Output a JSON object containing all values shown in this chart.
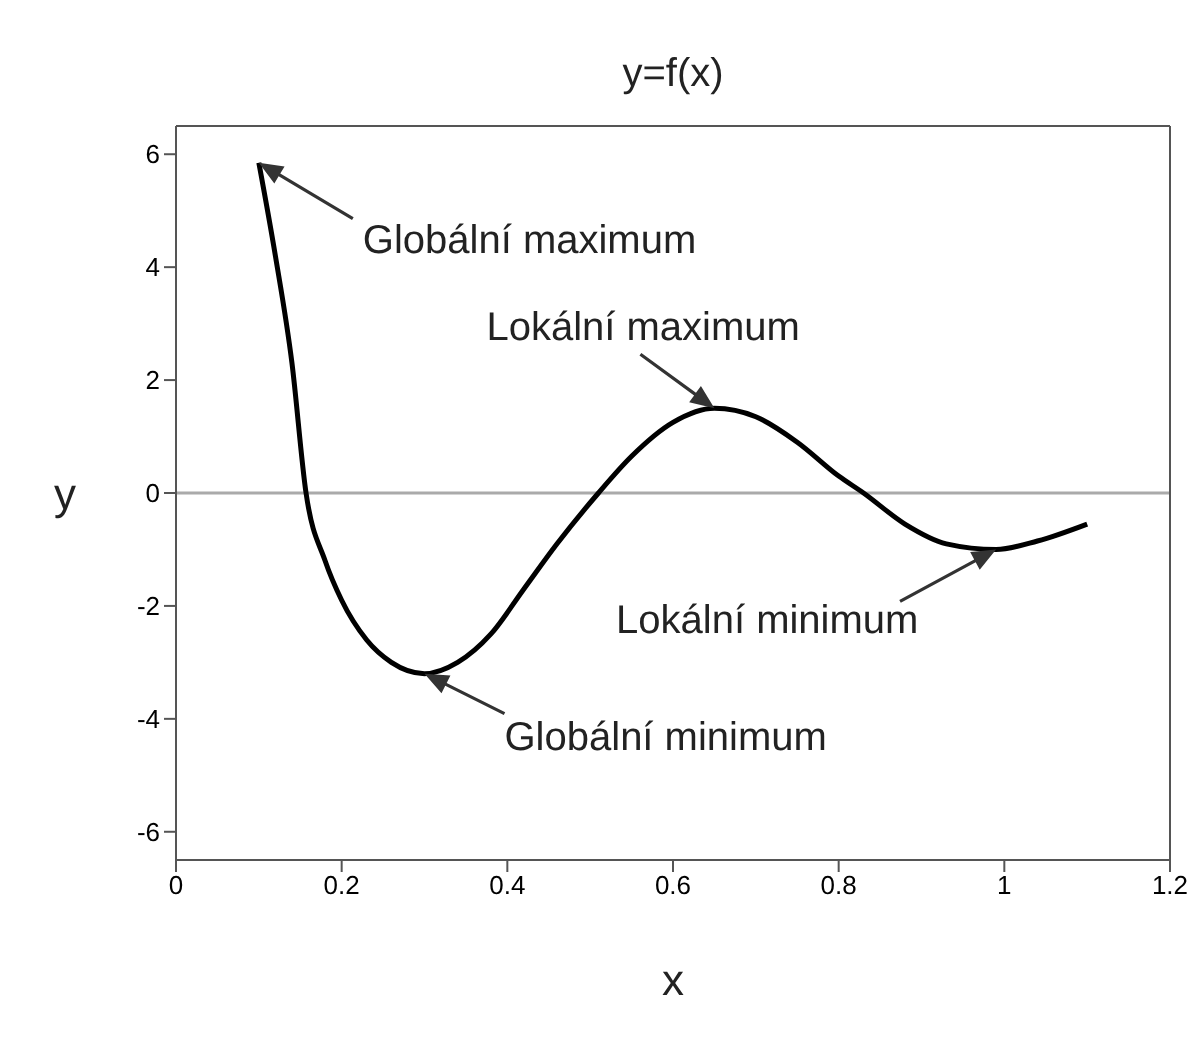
{
  "chart_data": {
    "type": "line",
    "title": "y=f(x)",
    "xlabel": "x",
    "ylabel": "y",
    "xlim": [
      0,
      1.2
    ],
    "xticks": [
      0,
      0.2,
      0.4,
      0.6,
      0.8,
      1,
      1.2
    ],
    "ylim": [
      -6.5,
      6.5
    ],
    "yticks": [
      -6,
      -4,
      -2,
      0,
      2,
      4,
      6
    ],
    "x": [
      0.1,
      0.12,
      0.14,
      0.157,
      0.18,
      0.2,
      0.23,
      0.26,
      0.3,
      0.34,
      0.38,
      0.42,
      0.46,
      0.51,
      0.55,
      0.6,
      0.65,
      0.7,
      0.75,
      0.8,
      0.83,
      0.88,
      0.93,
      0.99,
      1.04,
      1.1
    ],
    "series": [
      {
        "color": "#000000",
        "values": [
          5.85,
          4.2,
          2.3,
          0,
          -1.2,
          -1.9,
          -2.6,
          -3.0,
          -3.2,
          -3.0,
          -2.5,
          -1.7,
          -0.9,
          0,
          0.65,
          1.25,
          1.5,
          1.35,
          0.9,
          0.3,
          0,
          -0.55,
          -0.9,
          -1.0,
          -0.85,
          -0.55
        ]
      }
    ],
    "ref_lines": [
      {
        "axis": "y",
        "value": 0,
        "color": "#aaaaaa"
      }
    ],
    "annotations": [
      {
        "text": "Globální maximum",
        "x": 0.1,
        "y": 5.85
      },
      {
        "text": "Lokální maximum",
        "x": 0.65,
        "y": 1.5
      },
      {
        "text": "Lokální minimum",
        "x": 0.99,
        "y": -1.0
      },
      {
        "text": "Globální minimum",
        "x": 0.3,
        "y": -3.2
      }
    ],
    "marker": "none",
    "line_style": "solid"
  }
}
